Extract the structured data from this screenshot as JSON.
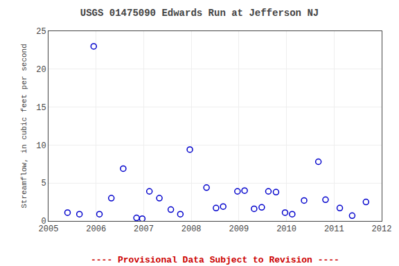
{
  "chart_data": {
    "type": "scatter",
    "title": "USGS 01475090 Edwards Run at Jefferson NJ",
    "ylabel": "Streamflow, in cubic feet per second",
    "annotations": [
      {
        "text": "---- Provisional Data Subject to Revision ----",
        "color": "#cc0000"
      }
    ],
    "x": [
      2005.4,
      2005.65,
      2005.95,
      2006.07,
      2006.32,
      2006.57,
      2006.85,
      2006.97,
      2007.12,
      2007.33,
      2007.57,
      2007.77,
      2007.97,
      2008.32,
      2008.52,
      2008.67,
      2008.97,
      2009.12,
      2009.32,
      2009.48,
      2009.62,
      2009.78,
      2009.97,
      2010.12,
      2010.37,
      2010.67,
      2010.82,
      2011.12,
      2011.38,
      2011.67
    ],
    "values": [
      1.1,
      0.9,
      23.0,
      0.9,
      3.0,
      6.9,
      0.4,
      0.3,
      3.9,
      3.0,
      1.5,
      0.9,
      9.4,
      4.4,
      1.7,
      1.9,
      3.9,
      4.0,
      1.6,
      1.8,
      3.9,
      3.8,
      1.1,
      0.9,
      2.7,
      7.8,
      2.8,
      1.7,
      0.7,
      2.5
    ],
    "color": "#0000cc",
    "marker": "circle-open",
    "xlim": [
      2005,
      2012
    ],
    "ylim": [
      0,
      25
    ],
    "xticks": [
      2005,
      2006,
      2007,
      2008,
      2009,
      2010,
      2011,
      2012
    ],
    "yticks": [
      0,
      5,
      10,
      15,
      20,
      25
    ],
    "grid": true
  }
}
